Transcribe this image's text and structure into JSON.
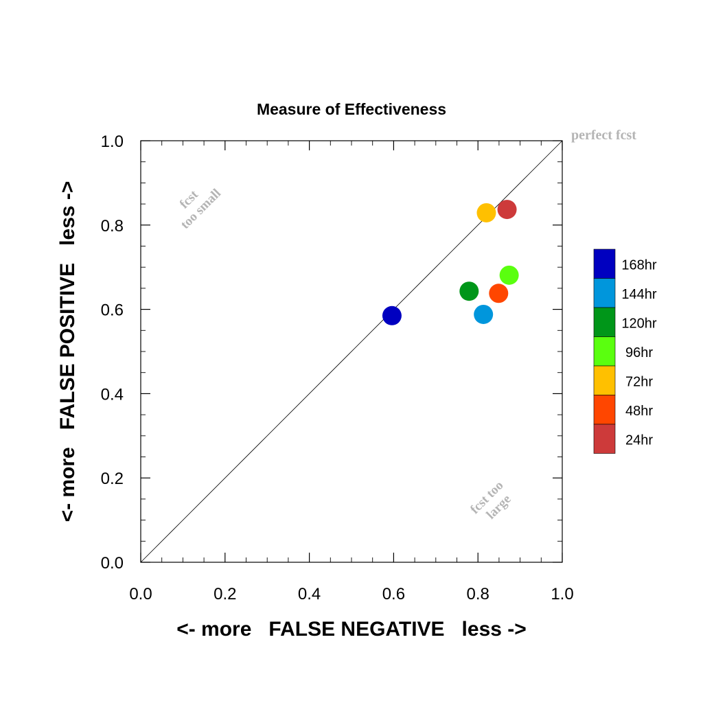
{
  "chart_data": {
    "type": "scatter",
    "title": "Measure of Effectiveness",
    "xlabel": "<- more   FALSE NEGATIVE   less ->",
    "ylabel": "<- more   FALSE POSITIVE   less ->",
    "xlim": [
      0.0,
      1.0
    ],
    "ylim": [
      0.0,
      1.0
    ],
    "x_ticks": [
      "0.0",
      "0.2",
      "0.4",
      "0.6",
      "0.8",
      "1.0"
    ],
    "y_ticks": [
      "0.0",
      "0.2",
      "0.4",
      "0.6",
      "0.8",
      "1.0"
    ],
    "grid": false,
    "legend_position": "right",
    "diagonal_label": "perfect fcst",
    "annotations": {
      "upper_left": [
        "fcst",
        "too small"
      ],
      "lower_right": [
        "fcst too",
        "large"
      ]
    },
    "series": [
      {
        "name": "168hr",
        "color": "#0000c0",
        "x": 0.596,
        "y": 0.585
      },
      {
        "name": "144hr",
        "color": "#0096dc",
        "x": 0.813,
        "y": 0.588
      },
      {
        "name": "120hr",
        "color": "#009619",
        "x": 0.779,
        "y": 0.643
      },
      {
        "name": "96hr",
        "color": "#5aff0f",
        "x": 0.874,
        "y": 0.681
      },
      {
        "name": "72hr",
        "color": "#ffc000",
        "x": 0.82,
        "y": 0.829
      },
      {
        "name": "48hr",
        "color": "#ff4600",
        "x": 0.849,
        "y": 0.638
      },
      {
        "name": "24hr",
        "color": "#cd3a3a",
        "x": 0.869,
        "y": 0.837
      }
    ]
  }
}
